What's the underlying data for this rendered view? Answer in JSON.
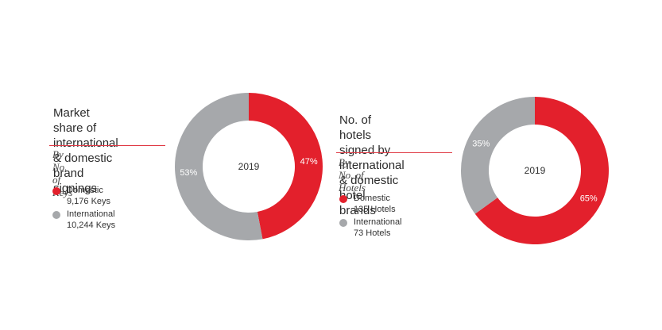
{
  "colors": {
    "domestic": "#e3202c",
    "international": "#a6a8ab"
  },
  "chart_data": [
    {
      "type": "pie",
      "title": "Market share of\ninternational & domestic\nbrand signings",
      "subtitle": "By No. of Keys",
      "center_label": "2019",
      "slices": [
        {
          "label": "Domestic",
          "detail": "9,176 Keys",
          "value": 47,
          "display": "47%"
        },
        {
          "label": "International",
          "detail": "10,244 Keys",
          "value": 53,
          "display": "53%"
        }
      ]
    },
    {
      "type": "pie",
      "title": "No. of hotels signed by\ninternational & domestic\nhotel brands",
      "subtitle": "By No. of Hotels",
      "center_label": "2019",
      "slices": [
        {
          "label": "Domestic",
          "detail": "135 Hotels",
          "value": 65,
          "display": "65%"
        },
        {
          "label": "International",
          "detail": "73 Hotels",
          "value": 35,
          "display": "35%"
        }
      ]
    }
  ]
}
